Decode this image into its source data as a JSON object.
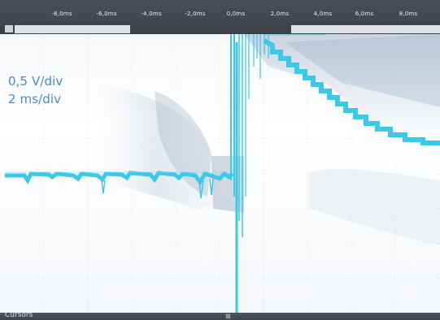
{
  "time_axis": {
    "labels": [
      "-8,0ms",
      "-6,0ms",
      "-4,0ms",
      "-2,0ms",
      "0,0ms",
      "2,0ms",
      "4,0ms",
      "6,0ms",
      "8,0ms"
    ]
  },
  "channel": {
    "volts_per_div": "0,5 V/div",
    "time_per_div": "2 ms/div",
    "trace_color": "#3cc8e8"
  },
  "status_bar": {
    "cursors_label": "Cursors"
  },
  "icons": {
    "trigger": "trigger-marker-icon"
  }
}
